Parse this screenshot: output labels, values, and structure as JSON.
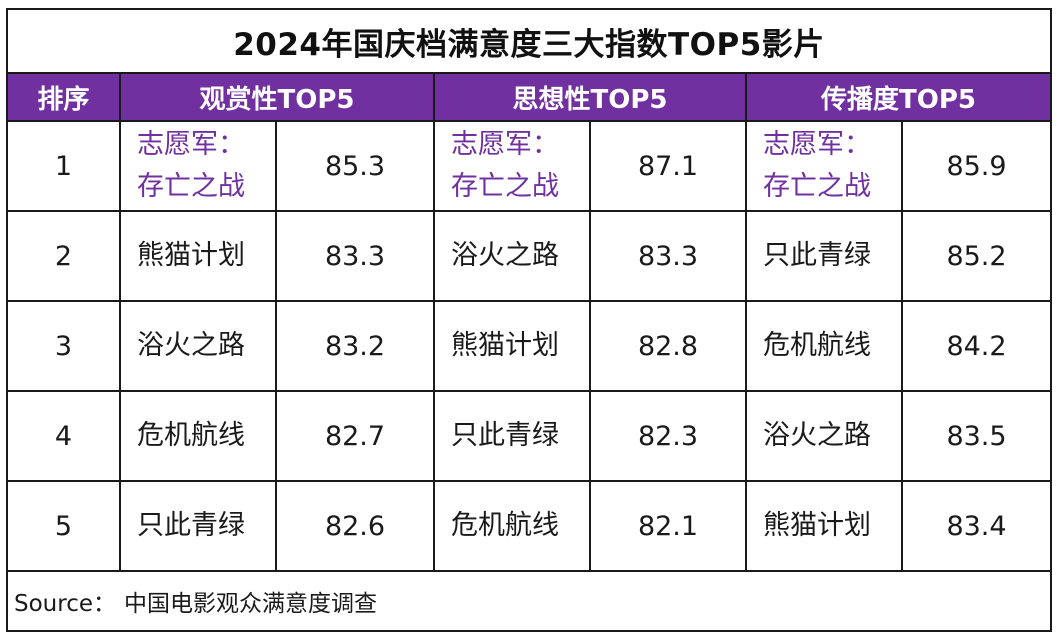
{
  "chart_data": {
    "type": "table",
    "title": "2024年国庆档满意度三大指数TOP5影片",
    "headers": [
      "排序",
      "观赏性TOP5",
      "思想性TOP5",
      "传播度TOP5"
    ],
    "rows": [
      {
        "rank": "1",
        "viewing": {
          "line1": "志愿军：",
          "line2": "存亡之战",
          "score": "85.3"
        },
        "thought": {
          "line1": "志愿军：",
          "line2": "存亡之战",
          "score": "87.1"
        },
        "spread": {
          "line1": "志愿军：",
          "line2": "存亡之战",
          "score": "85.9"
        }
      },
      {
        "rank": "2",
        "viewing": {
          "line1": "熊猫计划",
          "line2": "",
          "score": "83.3"
        },
        "thought": {
          "line1": "浴火之路",
          "line2": "",
          "score": "83.3"
        },
        "spread": {
          "line1": "只此青绿",
          "line2": "",
          "score": "85.2"
        }
      },
      {
        "rank": "3",
        "viewing": {
          "line1": "浴火之路",
          "line2": "",
          "score": "83.2"
        },
        "thought": {
          "line1": "熊猫计划",
          "line2": "",
          "score": "82.8"
        },
        "spread": {
          "line1": "危机航线",
          "line2": "",
          "score": "84.2"
        }
      },
      {
        "rank": "4",
        "viewing": {
          "line1": "危机航线",
          "line2": "",
          "score": "82.7"
        },
        "thought": {
          "line1": "只此青绿",
          "line2": "",
          "score": "82.3"
        },
        "spread": {
          "line1": "浴火之路",
          "line2": "",
          "score": "83.5"
        }
      },
      {
        "rank": "5",
        "viewing": {
          "line1": "只此青绿",
          "line2": "",
          "score": "82.6"
        },
        "thought": {
          "line1": "危机航线",
          "line2": "",
          "score": "82.1"
        },
        "spread": {
          "line1": "熊猫计划",
          "line2": "",
          "score": "83.4"
        }
      }
    ]
  },
  "source": {
    "label": "Source：",
    "text": "中国电影观众满意度调查"
  },
  "colors": {
    "header_bg": "#7030a0",
    "highlight_text": "#7030a0",
    "border": "#1a1a1a"
  }
}
